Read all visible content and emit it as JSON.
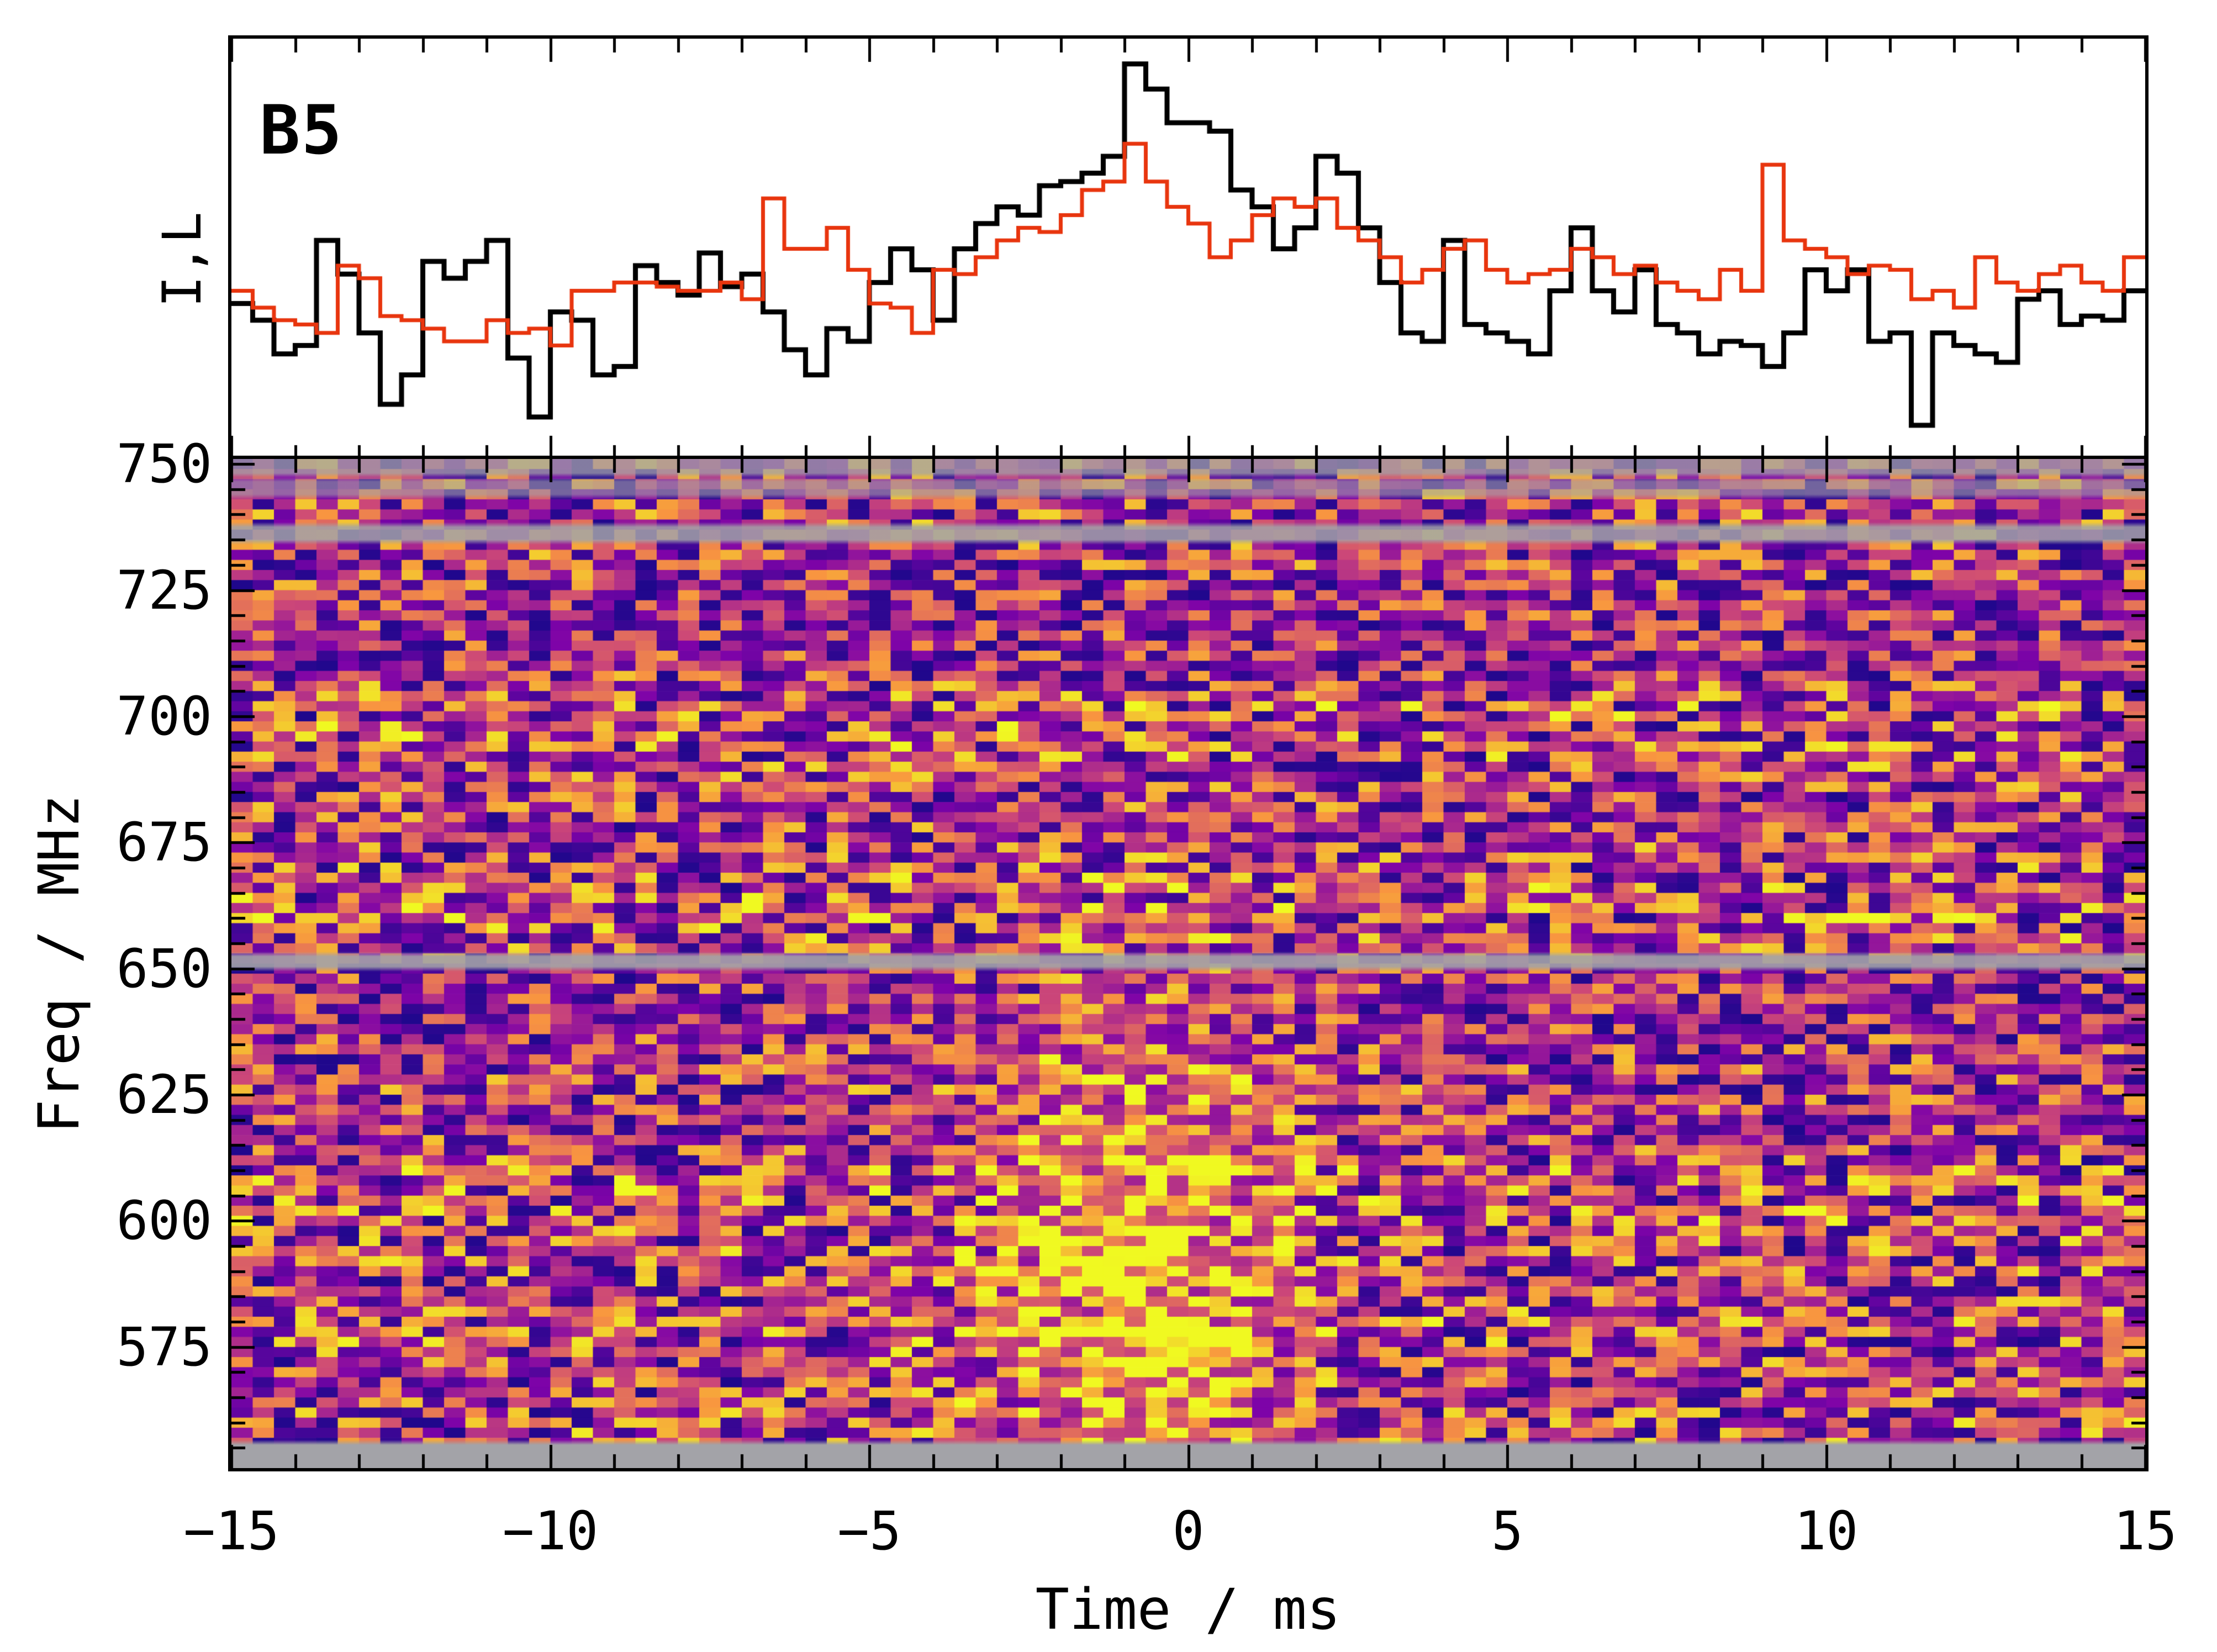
{
  "figure": {
    "background_color": "#ffffff",
    "annotation": "B5"
  },
  "axes": {
    "xlabel": "Time / ms",
    "ylabel": "Freq / MHz",
    "profile_ylabel": "I,L",
    "x_ticks": [
      {
        "value": -15,
        "label": "−15"
      },
      {
        "value": -10,
        "label": "−10"
      },
      {
        "value": -5,
        "label": "−5"
      },
      {
        "value": 0,
        "label": "0"
      },
      {
        "value": 5,
        "label": "5"
      },
      {
        "value": 10,
        "label": "10"
      },
      {
        "value": 15,
        "label": "15"
      }
    ],
    "y_ticks": [
      {
        "value": 750,
        "label": "750"
      },
      {
        "value": 725,
        "label": "725"
      },
      {
        "value": 700,
        "label": "700"
      },
      {
        "value": 675,
        "label": "675"
      },
      {
        "value": 650,
        "label": "650"
      },
      {
        "value": 625,
        "label": "625"
      },
      {
        "value": 600,
        "label": "600"
      },
      {
        "value": 575,
        "label": "575"
      }
    ],
    "x_minor_step_ms": 1,
    "y_minor_step_mhz": 5,
    "tick_direction": "in",
    "spine_color": "#000000"
  },
  "chart_data": [
    {
      "id": "pulse_profile",
      "type": "line",
      "subtype": "step-histogram",
      "annotation": "B5",
      "ylabel": "I,L",
      "x_range_ms": [
        -15,
        15
      ],
      "n_bins": 90,
      "ylim_normalized": [
        0,
        1
      ],
      "series": [
        {
          "name": "I",
          "color": "#000000",
          "line_width": 9,
          "values": [
            0.37,
            0.33,
            0.25,
            0.27,
            0.52,
            0.44,
            0.3,
            0.13,
            0.2,
            0.47,
            0.43,
            0.47,
            0.52,
            0.24,
            0.1,
            0.35,
            0.33,
            0.2,
            0.22,
            0.46,
            0.42,
            0.39,
            0.49,
            0.41,
            0.44,
            0.35,
            0.26,
            0.2,
            0.31,
            0.28,
            0.42,
            0.5,
            0.45,
            0.33,
            0.5,
            0.56,
            0.6,
            0.58,
            0.65,
            0.66,
            0.68,
            0.72,
            0.94,
            0.88,
            0.8,
            0.8,
            0.78,
            0.64,
            0.6,
            0.5,
            0.55,
            0.72,
            0.68,
            0.55,
            0.42,
            0.3,
            0.28,
            0.52,
            0.32,
            0.3,
            0.28,
            0.25,
            0.4,
            0.55,
            0.4,
            0.35,
            0.45,
            0.32,
            0.3,
            0.25,
            0.28,
            0.27,
            0.22,
            0.3,
            0.45,
            0.4,
            0.45,
            0.28,
            0.3,
            0.08,
            0.3,
            0.27,
            0.25,
            0.23,
            0.38,
            0.4,
            0.32,
            0.34,
            0.33,
            0.4
          ]
        },
        {
          "name": "L",
          "color": "#e8350e",
          "line_width": 7,
          "values": [
            0.4,
            0.36,
            0.33,
            0.32,
            0.3,
            0.46,
            0.43,
            0.34,
            0.33,
            0.31,
            0.28,
            0.28,
            0.33,
            0.3,
            0.31,
            0.27,
            0.4,
            0.4,
            0.42,
            0.42,
            0.41,
            0.4,
            0.4,
            0.42,
            0.38,
            0.62,
            0.5,
            0.5,
            0.55,
            0.45,
            0.37,
            0.36,
            0.3,
            0.45,
            0.44,
            0.48,
            0.52,
            0.55,
            0.54,
            0.58,
            0.64,
            0.66,
            0.75,
            0.66,
            0.6,
            0.56,
            0.48,
            0.52,
            0.58,
            0.62,
            0.6,
            0.62,
            0.55,
            0.52,
            0.48,
            0.42,
            0.45,
            0.5,
            0.52,
            0.45,
            0.42,
            0.44,
            0.45,
            0.5,
            0.48,
            0.44,
            0.46,
            0.42,
            0.4,
            0.38,
            0.45,
            0.4,
            0.7,
            0.52,
            0.5,
            0.48,
            0.44,
            0.46,
            0.45,
            0.38,
            0.4,
            0.36,
            0.48,
            0.42,
            0.4,
            0.44,
            0.46,
            0.42,
            0.4,
            0.48
          ]
        }
      ]
    },
    {
      "id": "dynamic_spectrum",
      "type": "heatmap",
      "xlabel": "Time / ms",
      "ylabel": "Freq / MHz",
      "x_range_ms": [
        -15,
        15
      ],
      "freq_range_mhz": [
        551,
        751
      ],
      "n_time_bins": 90,
      "n_channels": 100,
      "colormap": "plasma",
      "colormap_stops": [
        [
          0.0,
          "#0d0887"
        ],
        [
          0.25,
          "#7e03a8"
        ],
        [
          0.5,
          "#cc4778"
        ],
        [
          0.75,
          "#f89540"
        ],
        [
          1.0,
          "#f0f921"
        ]
      ],
      "masked_color": "#a3a3a8",
      "masked_bands_mhz": [
        [
          748.2,
          751.0,
          0.75
        ],
        [
          744.0,
          746.5,
          0.6
        ],
        [
          735.0,
          737.5,
          0.85
        ],
        [
          650.4,
          652.4,
          0.9
        ],
        [
          551.0,
          555.6,
          1.0
        ]
      ],
      "noise_seed": 20230405,
      "channel_bias_anchors": [
        [
          551,
          0.5
        ],
        [
          560,
          0.55
        ],
        [
          570,
          0.45
        ],
        [
          578,
          0.6
        ],
        [
          586,
          0.5
        ],
        [
          594,
          0.55
        ],
        [
          602,
          0.62
        ],
        [
          610,
          0.6
        ],
        [
          618,
          0.35
        ],
        [
          626,
          0.45
        ],
        [
          634,
          0.4
        ],
        [
          642,
          0.3
        ],
        [
          650,
          0.35
        ],
        [
          658,
          0.65
        ],
        [
          666,
          0.62
        ],
        [
          672,
          0.5
        ],
        [
          680,
          0.42
        ],
        [
          688,
          0.5
        ],
        [
          696,
          0.62
        ],
        [
          703,
          0.6
        ],
        [
          710,
          0.35
        ],
        [
          718,
          0.32
        ],
        [
          726,
          0.38
        ],
        [
          733,
          0.45
        ],
        [
          740,
          0.5
        ],
        [
          747,
          0.42
        ],
        [
          751,
          0.45
        ]
      ],
      "burst": {
        "t0_ms": -0.8,
        "sigma_ms": 1.6,
        "freq_center_mhz": 585,
        "freq_sigma_mhz": 40,
        "peak_boost": 0.55
      }
    }
  ]
}
